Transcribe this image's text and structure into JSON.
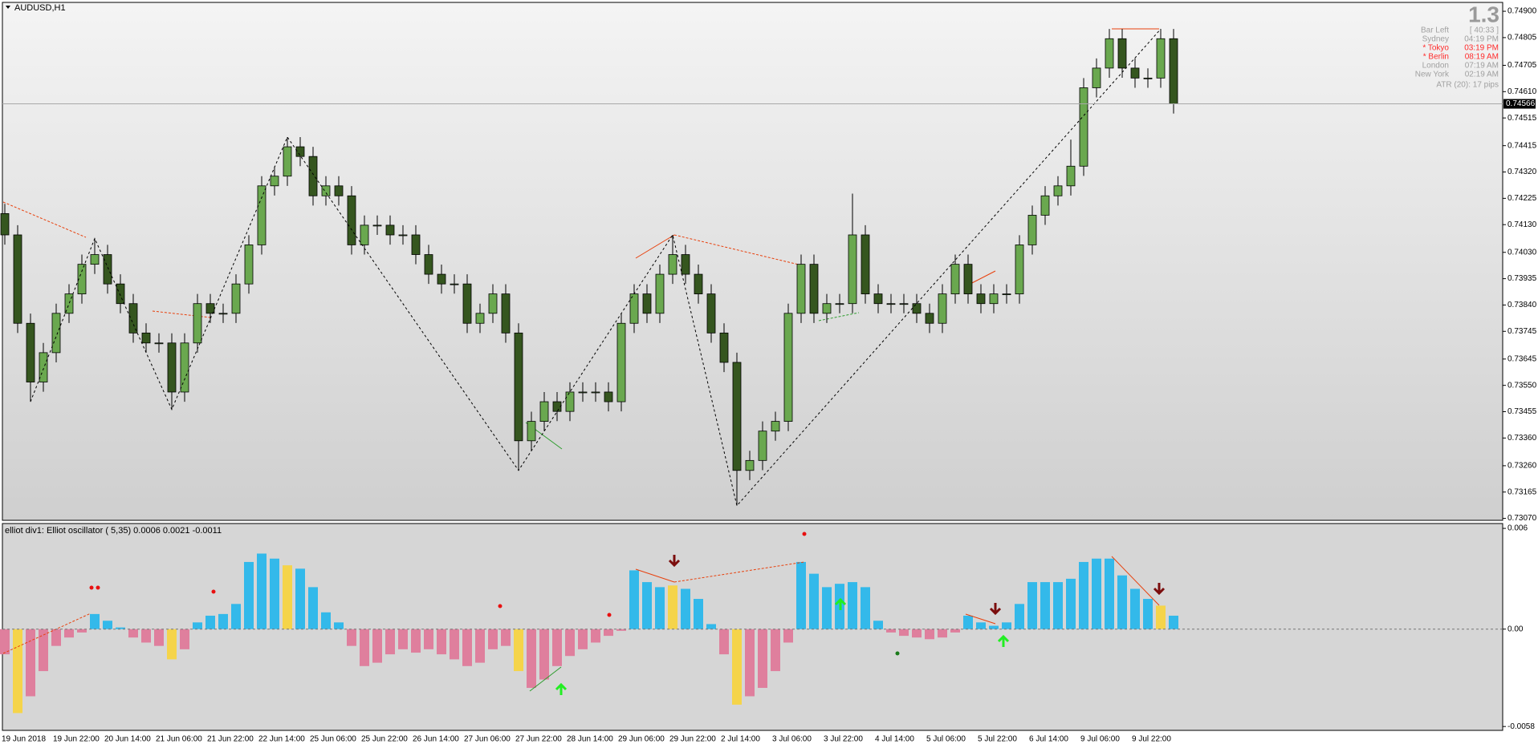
{
  "symbol": "AUDUSD,H1",
  "chart_data": [
    {
      "type": "candlestick",
      "categories": [
        "19 Jun 2018",
        null,
        null,
        null,
        "19 Jun 22:00",
        null,
        null,
        null,
        "20 Jun 14:00",
        null,
        null,
        null,
        "21 Jun 06:00",
        null,
        null,
        null,
        "21 Jun 22:00",
        null,
        null,
        null,
        "22 Jun 14:00",
        null,
        null,
        null,
        "25 Jun 06:00",
        null,
        null,
        null,
        "25 Jun 22:00",
        null,
        null,
        null,
        "26 Jun 14:00",
        null,
        null,
        null,
        "27 Jun 06:00",
        null,
        null,
        null,
        "27 Jun 22:00",
        null,
        null,
        null,
        "28 Jun 14:00",
        null,
        null,
        null,
        "29 Jun 06:00",
        null,
        null,
        null,
        "29 Jun 22:00",
        null,
        null,
        null,
        "2 Jul 14:00",
        null,
        null,
        null,
        "3 Jul 06:00",
        null,
        null,
        null,
        "3 Jul 22:00",
        null,
        null,
        null,
        "4 Jul 14:00",
        null,
        null,
        null,
        "5 Jul 06:00",
        null,
        null,
        null,
        "5 Jul 22:00",
        null,
        null,
        null,
        "6 Jul 14:00",
        null,
        null,
        null,
        "9 Jul 06:00",
        null,
        null,
        null,
        "9 Jul 22:00",
        null,
        null,
        null
      ],
      "open": [
        0.7417,
        0.74093,
        0.73774,
        0.73562,
        0.73668,
        0.7381,
        0.7388,
        0.73987,
        0.74022,
        0.73916,
        0.73845,
        0.73739,
        0.73703,
        0.73703,
        0.73526,
        0.73703,
        0.73845,
        0.7381,
        0.7381,
        0.73916,
        0.74057,
        0.7427,
        0.74305,
        0.74411,
        0.74376,
        0.74234,
        0.7427,
        0.74234,
        0.74057,
        0.74128,
        0.74128,
        0.74093,
        0.74093,
        0.74022,
        0.73951,
        0.73916,
        0.73916,
        0.73774,
        0.7381,
        0.7388,
        0.73739,
        0.7335,
        0.7342,
        0.73491,
        0.73456,
        0.73526,
        0.73526,
        0.73526,
        0.73491,
        0.73774,
        0.7388,
        0.7381,
        0.73951,
        0.74022,
        0.73951,
        0.7388,
        0.73739,
        0.73633,
        0.73243,
        0.73279,
        0.73385,
        0.7342,
        0.7381,
        0.73987,
        0.7381,
        0.73845,
        0.73845,
        0.74093,
        0.7388,
        0.73845,
        0.73845,
        0.73845,
        0.7381,
        0.73774,
        0.7388,
        0.73987,
        0.7388,
        0.73845,
        0.7388,
        0.7388,
        0.74057,
        0.74164,
        0.74234,
        0.7427,
        0.74341,
        0.74624,
        0.74695,
        0.74801,
        0.74695,
        0.74659,
        0.74659,
        0.74801
      ],
      "high": [
        0.74205,
        0.74128,
        0.73809,
        0.73703,
        0.73845,
        0.73915,
        0.74022,
        0.7408,
        0.74057,
        0.73951,
        0.7388,
        0.73774,
        0.73738,
        0.73738,
        0.73738,
        0.7388,
        0.7388,
        0.73845,
        0.73951,
        0.74092,
        0.74305,
        0.7434,
        0.74446,
        0.74446,
        0.74411,
        0.74305,
        0.74305,
        0.74269,
        0.74163,
        0.74163,
        0.74163,
        0.74128,
        0.74128,
        0.74057,
        0.73986,
        0.73951,
        0.73951,
        0.73845,
        0.73915,
        0.73915,
        0.73774,
        0.73455,
        0.73526,
        0.73526,
        0.73561,
        0.73561,
        0.73561,
        0.73561,
        0.73809,
        0.73915,
        0.73915,
        0.73986,
        0.74093,
        0.74057,
        0.73986,
        0.73915,
        0.73774,
        0.73668,
        0.73314,
        0.7342,
        0.73455,
        0.73845,
        0.74022,
        0.74022,
        0.7388,
        0.7388,
        0.74242,
        0.74128,
        0.73915,
        0.7388,
        0.7388,
        0.7388,
        0.73845,
        0.73915,
        0.74022,
        0.74022,
        0.73915,
        0.73915,
        0.73915,
        0.74092,
        0.74199,
        0.74269,
        0.74305,
        0.74437,
        0.74659,
        0.7473,
        0.74836,
        0.74836,
        0.7473,
        0.74694,
        0.74836,
        0.74836
      ],
      "low": [
        0.74058,
        0.73739,
        0.73491,
        0.73527,
        0.73633,
        0.73775,
        0.73845,
        0.73952,
        0.73881,
        0.7381,
        0.73704,
        0.73668,
        0.73668,
        0.73463,
        0.73491,
        0.73668,
        0.73775,
        0.73775,
        0.73775,
        0.73881,
        0.74022,
        0.74235,
        0.7427,
        0.74341,
        0.74199,
        0.74199,
        0.74199,
        0.74022,
        0.74022,
        0.74093,
        0.74058,
        0.74058,
        0.73987,
        0.73916,
        0.73881,
        0.73881,
        0.73739,
        0.73739,
        0.73775,
        0.73704,
        0.73243,
        0.73315,
        0.73385,
        0.73421,
        0.73421,
        0.73491,
        0.73491,
        0.73456,
        0.73456,
        0.73739,
        0.73775,
        0.73775,
        0.73916,
        0.73916,
        0.73845,
        0.73704,
        0.73598,
        0.73116,
        0.73208,
        0.73244,
        0.7335,
        0.73385,
        0.73775,
        0.73775,
        0.73775,
        0.7381,
        0.7381,
        0.73845,
        0.7381,
        0.7381,
        0.7381,
        0.73775,
        0.73739,
        0.73739,
        0.73845,
        0.73845,
        0.7381,
        0.7381,
        0.73845,
        0.73845,
        0.74022,
        0.74129,
        0.74199,
        0.74235,
        0.74306,
        0.74589,
        0.7466,
        0.7466,
        0.74624,
        0.74624,
        0.74624,
        0.74531
      ],
      "close": [
        0.74093,
        0.73774,
        0.73562,
        0.73668,
        0.7381,
        0.7388,
        0.73987,
        0.74022,
        0.73916,
        0.73845,
        0.73739,
        0.73703,
        0.73703,
        0.73526,
        0.73703,
        0.73845,
        0.7381,
        0.7381,
        0.73916,
        0.74057,
        0.7427,
        0.74305,
        0.74411,
        0.74376,
        0.74234,
        0.7427,
        0.74234,
        0.74057,
        0.74128,
        0.74128,
        0.74093,
        0.74093,
        0.74022,
        0.73951,
        0.73916,
        0.73916,
        0.73774,
        0.7381,
        0.7388,
        0.73739,
        0.7335,
        0.7342,
        0.73491,
        0.73456,
        0.73526,
        0.73526,
        0.73526,
        0.73491,
        0.73774,
        0.7388,
        0.7381,
        0.73951,
        0.74022,
        0.73951,
        0.7388,
        0.73739,
        0.73633,
        0.73243,
        0.73279,
        0.73385,
        0.7342,
        0.7381,
        0.73987,
        0.7381,
        0.73845,
        0.73845,
        0.74093,
        0.7388,
        0.73845,
        0.73845,
        0.73845,
        0.7381,
        0.73774,
        0.7388,
        0.73987,
        0.7388,
        0.73845,
        0.7388,
        0.7388,
        0.74057,
        0.74164,
        0.74234,
        0.7427,
        0.74341,
        0.74624,
        0.74695,
        0.74801,
        0.74695,
        0.74659,
        0.74659,
        0.74801,
        0.74566
      ],
      "up_color": "#6aa84f",
      "down_color": "#35561f",
      "wick_color": "#000000",
      "ylim": [
        0.73063,
        0.74932
      ],
      "yticks": [
        {
          "value": 0.749,
          "label": "0.74900"
        },
        0.74805,
        0.74705,
        {
          "value": 0.7461,
          "label": "0.74610"
        },
        0.74515,
        0.74415,
        {
          "value": 0.7432,
          "label": "0.74320"
        },
        0.74225,
        {
          "value": 0.7413,
          "label": "0.74130"
        },
        {
          "value": 0.7403,
          "label": "0.74030"
        },
        0.73935,
        {
          "value": 0.7384,
          "label": "0.73840"
        },
        0.73745,
        0.73645,
        {
          "value": 0.7355,
          "label": "0.73550"
        },
        0.73455,
        {
          "value": 0.7336,
          "label": "0.73360"
        },
        {
          "value": 0.7326,
          "label": "0.73260"
        },
        0.73165,
        {
          "value": 0.7307,
          "label": "0.73070"
        }
      ],
      "grid": false,
      "current_price": 0.74566,
      "zigzag": {
        "x": [
          2,
          7,
          13,
          22,
          40,
          52,
          57,
          90
        ],
        "values": [
          0.73491,
          0.7408,
          0.73463,
          0.74446,
          0.73243,
          0.74093,
          0.73116,
          0.74836
        ],
        "color": "#000000"
      }
    },
    {
      "type": "oscillator",
      "title": "elliot div1: Elliot oscillator ( 5,35) 0.0006 0.0021 -0.0011",
      "values": [
        -0.0015,
        -0.005,
        -0.004,
        -0.0025,
        -0.001,
        -0.0005,
        -0.0002,
        0.0009,
        0.0005,
        0.0001,
        -0.0005,
        -0.0008,
        -0.001,
        -0.0018,
        -0.0012,
        0.0004,
        0.0008,
        0.0009,
        0.0015,
        0.004,
        0.0045,
        0.0042,
        0.0038,
        0.0036,
        0.0025,
        0.001,
        0.0004,
        -0.001,
        -0.0022,
        -0.002,
        -0.0015,
        -0.0012,
        -0.0014,
        -0.0012,
        -0.0015,
        -0.0018,
        -0.0022,
        -0.002,
        -0.0012,
        -0.001,
        -0.0025,
        -0.0035,
        -0.003,
        -0.0022,
        -0.0016,
        -0.0012,
        -0.0008,
        -0.0004,
        -0.0001,
        0.0035,
        0.0028,
        0.0025,
        0.0026,
        0.0024,
        0.0018,
        0.0003,
        -0.0015,
        -0.0045,
        -0.004,
        -0.0035,
        -0.0025,
        -0.0008,
        0.004,
        0.0033,
        0.0025,
        0.0027,
        0.0028,
        0.0025,
        0.0005,
        -0.0002,
        -0.0004,
        -0.0005,
        -0.0006,
        -0.0005,
        -0.0002,
        0.0008,
        0.0004,
        0.0002,
        0.0004,
        0.0015,
        0.0028,
        0.0028,
        0.0028,
        0.003,
        0.004,
        0.0042,
        0.0042,
        0.0032,
        0.0024,
        0.0018,
        0.0014,
        0.0008
      ],
      "positive_color": "#33b9ea",
      "negative_color": "#df7f9d",
      "highlight": {
        "color": "#f5d44a",
        "indices": [
          1,
          13,
          22,
          40,
          52,
          57,
          90
        ]
      },
      "ylim": [
        -0.00603,
        0.00629
      ],
      "yticks": [
        0.006,
        {
          "value": 0,
          "label": "0.00"
        },
        -0.0058
      ]
    }
  ],
  "info_panel": {
    "big": "1.3",
    "rows": [
      {
        "label": "Bar Left",
        "value": "[ 40:33 ]",
        "color": "#a0a0a0"
      },
      {
        "label": "Sydney",
        "value": "04:19 PM",
        "color": "#a0a0a0"
      },
      {
        "label": "* Tokyo",
        "value": "03:19 PM",
        "color": "#ff2a2a"
      },
      {
        "label": "* Berlin",
        "value": "08:19 AM",
        "color": "#ff2a2a"
      },
      {
        "label": "London",
        "value": "07:19 AM",
        "color": "#a0a0a0"
      },
      {
        "label": "New York",
        "value": "02:19 AM",
        "color": "#a0a0a0"
      }
    ],
    "atr": "ATR (20): 17 pips"
  }
}
